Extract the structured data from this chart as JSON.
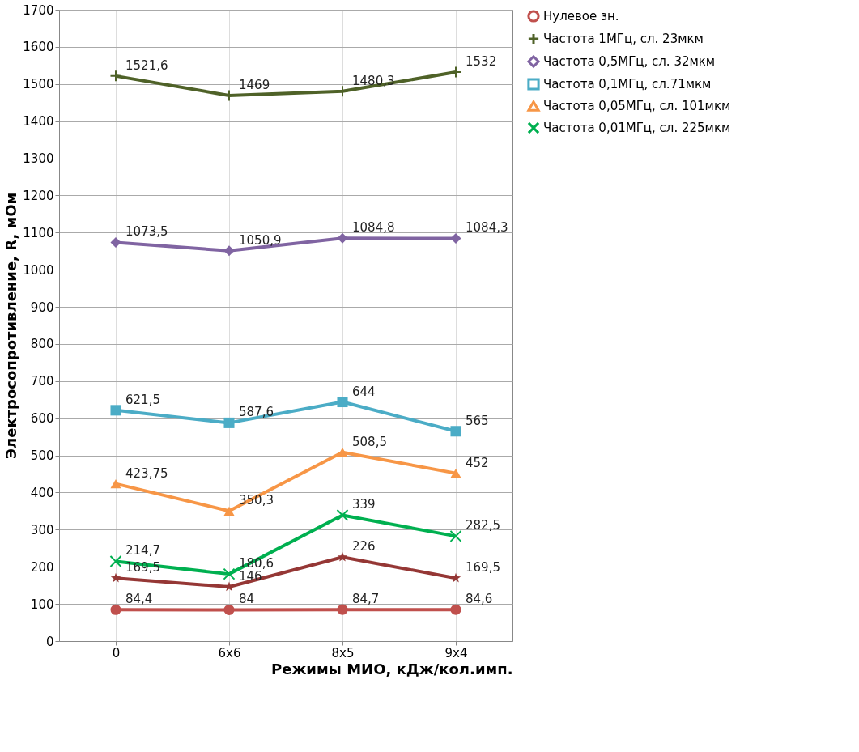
{
  "chart_data": {
    "type": "line",
    "xlabel": "Режимы МИО, кДж/кол.имп.",
    "ylabel": "Электросопротивление, R, мОм",
    "categories": [
      "0",
      "6х6",
      "8х5",
      "9х4"
    ],
    "series": [
      {
        "name": "Нулевое зн.",
        "color": "#c0504d",
        "marker": "circle",
        "values": [
          84.4,
          84,
          84.7,
          84.6
        ],
        "value_labels": [
          "84,4",
          "84",
          "84,7",
          "84,6"
        ]
      },
      {
        "name": "Частота 1МГц, сл. 23мкм",
        "color": "#4f6228",
        "marker": "plus",
        "values": [
          1521.6,
          1469,
          1480.3,
          1532
        ],
        "value_labels": [
          "1521,6",
          "1469",
          "1480,3",
          "1532"
        ]
      },
      {
        "name": "Частота 0,5МГц, сл. 32мкм",
        "color": "#8064a2",
        "marker": "diamond",
        "values": [
          1073.5,
          1050.9,
          1084.8,
          1084.3
        ],
        "value_labels": [
          "1073,5",
          "1050,9",
          "1084,8",
          "1084,3"
        ]
      },
      {
        "name": "Частота 0,1МГц, сл.71мкм",
        "color": "#4bacc6",
        "marker": "square",
        "values": [
          621.5,
          587.6,
          644,
          565
        ],
        "value_labels": [
          "621,5",
          "587,6",
          "644",
          "565"
        ]
      },
      {
        "name": "Частота 0,05МГц, сл. 101мкм",
        "color": "#f79646",
        "marker": "triangle",
        "values": [
          423.75,
          350.3,
          508.5,
          452
        ],
        "value_labels": [
          "423,75",
          "350,3",
          "508,5",
          "452"
        ]
      },
      {
        "name": "Частота 0,01МГц, сл. 225мкм",
        "color": "#00b050",
        "marker": "cross",
        "values": [
          214.7,
          180.6,
          339,
          282.5
        ],
        "value_labels": [
          "214,7",
          "180,6",
          "339",
          "282,5"
        ]
      },
      {
        "color": "#953735",
        "marker": "star",
        "values": [
          169.5,
          146,
          226,
          169.5
        ],
        "value_labels": [
          "169,5",
          "146",
          "226",
          "169,5"
        ]
      }
    ],
    "ylim": [
      0,
      1700
    ],
    "yticks": [
      0,
      100,
      200,
      300,
      400,
      500,
      600,
      700,
      800,
      900,
      1000,
      1100,
      1200,
      1300,
      1400,
      1500,
      1600,
      1700
    ],
    "grid": true,
    "legend": "right",
    "line_style": "solid"
  }
}
